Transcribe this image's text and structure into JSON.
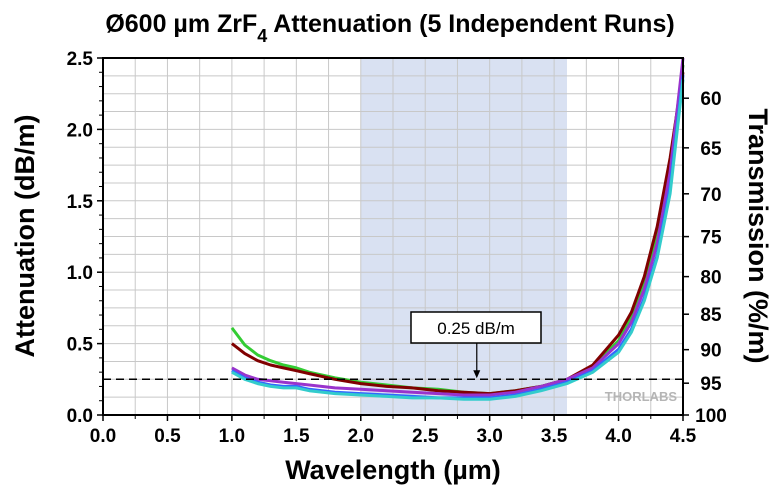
{
  "chart_data": {
    "type": "line",
    "title": "Ø600 µm ZrF",
    "title_subscript": "4",
    "title_rest": " Attenuation (5 Independent Runs)",
    "xlabel": "Wavelength (µm)",
    "ylabel": "Attenuation (dB/m)",
    "y2label": "Transmission (%/m)",
    "xlim": [
      0.0,
      4.5
    ],
    "ylim": [
      0.0,
      2.5
    ],
    "x_ticks": [
      "0.0",
      "0.5",
      "1.0",
      "1.5",
      "2.0",
      "2.5",
      "3.0",
      "3.5",
      "4.0",
      "4.5"
    ],
    "y_ticks": [
      "0.0",
      "0.5",
      "1.0",
      "1.5",
      "2.0",
      "2.5"
    ],
    "y2_ticks": [
      "60",
      "65",
      "70",
      "75",
      "80",
      "85",
      "90",
      "95",
      "100"
    ],
    "grid": true,
    "shaded_region": {
      "x": [
        2.0,
        3.6
      ],
      "color": "#d9e1f2"
    },
    "reference_line": {
      "y": 0.25,
      "label": "0.25 dB/m",
      "style": "dashed"
    },
    "logo": "THORLABS",
    "series": [
      {
        "color": "#33cc33",
        "x": [
          1.0,
          1.1,
          1.2,
          1.3,
          1.4,
          1.5,
          1.6,
          1.8,
          2.0,
          2.2,
          2.4,
          2.6,
          2.8,
          3.0,
          3.2,
          3.4,
          3.6,
          3.8,
          4.0,
          4.1,
          4.2,
          4.3,
          4.4,
          4.5
        ],
        "y": [
          0.61,
          0.49,
          0.42,
          0.38,
          0.35,
          0.33,
          0.3,
          0.26,
          0.23,
          0.21,
          0.19,
          0.18,
          0.16,
          0.15,
          0.17,
          0.2,
          0.25,
          0.34,
          0.52,
          0.68,
          0.92,
          1.25,
          1.75,
          2.45
        ]
      },
      {
        "color": "#800000",
        "x": [
          1.0,
          1.1,
          1.2,
          1.3,
          1.4,
          1.5,
          1.6,
          1.8,
          2.0,
          2.2,
          2.4,
          2.6,
          2.8,
          3.0,
          3.2,
          3.4,
          3.6,
          3.8,
          4.0,
          4.1,
          4.2,
          4.3,
          4.4,
          4.5
        ],
        "y": [
          0.5,
          0.43,
          0.38,
          0.35,
          0.33,
          0.31,
          0.29,
          0.25,
          0.22,
          0.2,
          0.19,
          0.17,
          0.16,
          0.15,
          0.17,
          0.2,
          0.25,
          0.35,
          0.56,
          0.72,
          0.97,
          1.32,
          1.8,
          2.4
        ]
      },
      {
        "color": "#9933cc",
        "x": [
          1.0,
          1.1,
          1.2,
          1.3,
          1.4,
          1.5,
          1.6,
          1.8,
          2.0,
          2.2,
          2.4,
          2.6,
          2.8,
          3.0,
          3.2,
          3.4,
          3.6,
          3.8,
          4.0,
          4.1,
          4.2,
          4.3,
          4.4,
          4.5
        ],
        "y": [
          0.33,
          0.28,
          0.25,
          0.24,
          0.23,
          0.22,
          0.21,
          0.19,
          0.18,
          0.17,
          0.16,
          0.15,
          0.14,
          0.14,
          0.16,
          0.2,
          0.25,
          0.33,
          0.5,
          0.65,
          0.88,
          1.2,
          1.7,
          2.5
        ]
      },
      {
        "color": "#3366ff",
        "x": [
          1.0,
          1.1,
          1.2,
          1.3,
          1.4,
          1.5,
          1.6,
          1.8,
          2.0,
          2.2,
          2.4,
          2.6,
          2.8,
          3.0,
          3.2,
          3.4,
          3.6,
          3.8,
          4.0,
          4.1,
          4.2,
          4.3,
          4.4,
          4.5
        ],
        "y": [
          0.31,
          0.26,
          0.23,
          0.21,
          0.2,
          0.2,
          0.18,
          0.16,
          0.15,
          0.14,
          0.13,
          0.12,
          0.12,
          0.12,
          0.14,
          0.18,
          0.23,
          0.31,
          0.46,
          0.6,
          0.82,
          1.12,
          1.6,
          2.38
        ]
      },
      {
        "color": "#33cccc",
        "x": [
          1.0,
          1.1,
          1.2,
          1.3,
          1.4,
          1.5,
          1.6,
          1.8,
          2.0,
          2.2,
          2.4,
          2.6,
          2.8,
          3.0,
          3.2,
          3.4,
          3.6,
          3.8,
          4.0,
          4.1,
          4.2,
          4.3,
          4.4,
          4.5
        ],
        "y": [
          0.3,
          0.25,
          0.22,
          0.2,
          0.19,
          0.19,
          0.17,
          0.15,
          0.14,
          0.13,
          0.12,
          0.12,
          0.11,
          0.11,
          0.13,
          0.17,
          0.22,
          0.3,
          0.44,
          0.58,
          0.8,
          1.1,
          1.55,
          2.35
        ]
      }
    ]
  }
}
